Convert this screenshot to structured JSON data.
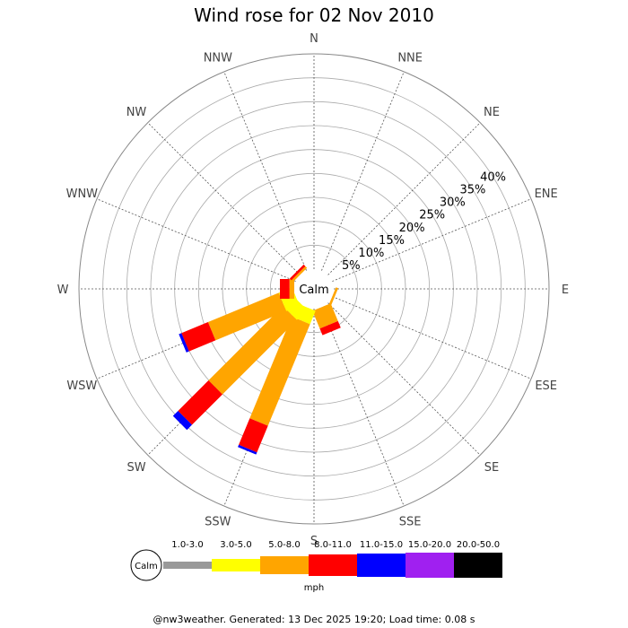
{
  "chart_data": {
    "type": "wind-rose",
    "title": "Wind rose for 02 Nov 2010",
    "calm_label": "Calm",
    "directions": [
      "N",
      "NNE",
      "NE",
      "ENE",
      "E",
      "ESE",
      "SE",
      "SSE",
      "S",
      "SSW",
      "SW",
      "WSW",
      "W",
      "WNW",
      "NW",
      "NNW"
    ],
    "rings_percent": [
      5,
      10,
      15,
      20,
      25,
      30,
      35,
      40
    ],
    "ring_labels": [
      "5%",
      "10%",
      "15%",
      "20%",
      "25%",
      "30%",
      "35%",
      "40%"
    ],
    "max_percent": 45,
    "speed_unit": "mph",
    "speed_bins": [
      {
        "label": "1.0-3.0",
        "color": "#999999"
      },
      {
        "label": "3.0-5.0",
        "color": "#ffff00"
      },
      {
        "label": "5.0-8.0",
        "color": "#ffa500"
      },
      {
        "label": "8.0-11.0",
        "color": "#ff0000"
      },
      {
        "label": "11.0-15.0",
        "color": "#0000ff"
      },
      {
        "label": "15.0-20.0",
        "color": "#a020f0"
      },
      {
        "label": "20.0-50.0",
        "color": "#000000"
      }
    ],
    "series": [
      {
        "name": "1.0-3.0",
        "values": [
          0,
          0,
          0,
          0,
          0,
          0,
          0,
          0,
          0,
          0,
          0,
          0,
          0,
          0,
          0,
          0
        ]
      },
      {
        "name": "3.0-5.0",
        "values": [
          0,
          0,
          0,
          0,
          0,
          0,
          0,
          0,
          0,
          3,
          3,
          3,
          0,
          0,
          0,
          0
        ]
      },
      {
        "name": "5.0-8.0",
        "values": [
          0,
          0,
          0,
          0,
          0,
          0.5,
          0,
          4,
          0,
          23,
          22,
          16,
          1,
          0,
          0.5,
          0
        ]
      },
      {
        "name": "8.0-11.0",
        "values": [
          0,
          0,
          0,
          0,
          0,
          0,
          0,
          1.5,
          0,
          6,
          9,
          6,
          2,
          0,
          0.5,
          0
        ]
      },
      {
        "name": "11.0-15.0",
        "values": [
          0,
          0,
          0,
          0,
          0,
          0,
          0,
          0,
          0,
          0.5,
          1.5,
          0.6,
          0,
          0,
          0,
          0
        ]
      },
      {
        "name": "15.0-20.0",
        "values": [
          0,
          0,
          0,
          0,
          0,
          0,
          0,
          0,
          0,
          0,
          0,
          0,
          0,
          0,
          0,
          0
        ]
      },
      {
        "name": "20.0-50.0",
        "values": [
          0,
          0,
          0,
          0,
          0,
          0,
          0,
          0,
          0,
          0,
          0,
          0,
          0,
          0,
          0,
          0
        ]
      }
    ]
  },
  "footer": "@nw3weather. Generated: 13 Dec 2025 19:20; Load time: 0.08 s"
}
